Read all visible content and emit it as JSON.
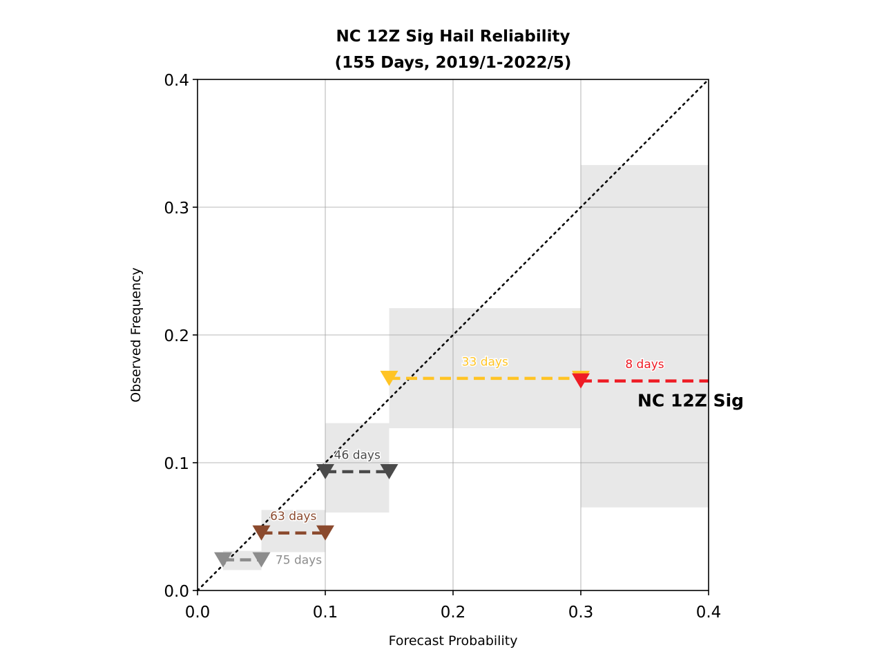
{
  "chart_data": {
    "type": "line",
    "title_line1": "NC 12Z Sig Hail Reliability",
    "title_line2": "(155 Days, 2019/1-2022/5)",
    "xlabel": "Forecast Probability",
    "ylabel": "Observed Frequency",
    "xlim": [
      0.0,
      0.4
    ],
    "ylim": [
      0.0,
      0.4
    ],
    "xticks": [
      "0.0",
      "0.1",
      "0.2",
      "0.3",
      "0.4"
    ],
    "yticks": [
      "0.0",
      "0.1",
      "0.2",
      "0.3",
      "0.4"
    ],
    "grid": true,
    "series_label": "NC 12Z Sig",
    "bins": [
      {
        "x_start": 0.02,
        "x_end": 0.05,
        "observed": 0.024,
        "ci_low": 0.016,
        "ci_high": 0.031,
        "days_label": "75 days",
        "color": "#8c8c8c"
      },
      {
        "x_start": 0.05,
        "x_end": 0.1,
        "observed": 0.045,
        "ci_low": 0.03,
        "ci_high": 0.063,
        "days_label": "63 days",
        "color": "#8b4a2e"
      },
      {
        "x_start": 0.1,
        "x_end": 0.15,
        "observed": 0.093,
        "ci_low": 0.061,
        "ci_high": 0.131,
        "days_label": "46 days",
        "color": "#4a4a4a"
      },
      {
        "x_start": 0.15,
        "x_end": 0.3,
        "observed": 0.166,
        "ci_low": 0.127,
        "ci_high": 0.221,
        "days_label": "33 days",
        "color": "#ffc425"
      },
      {
        "x_start": 0.3,
        "x_end": 0.4,
        "observed": 0.164,
        "ci_low": 0.065,
        "ci_high": 0.333,
        "days_label": "8 days",
        "color": "#ee1c25"
      }
    ],
    "perfect_reliability_line": [
      [
        0.0,
        0.0
      ],
      [
        0.4,
        0.4
      ]
    ]
  }
}
